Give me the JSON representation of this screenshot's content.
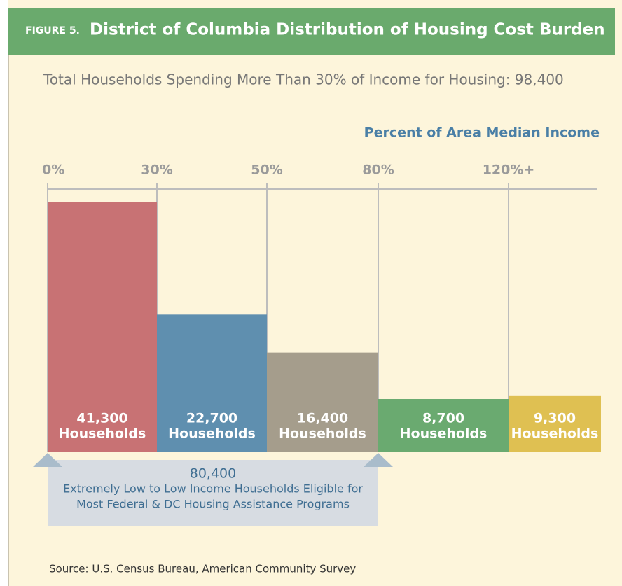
{
  "chart_data": {
    "type": "bar",
    "figure_label": "FIGURE 5.",
    "title": "District of Columbia Distribution of Housing Cost Burden",
    "subtitle": "Total Households Spending More Than 30% of Income for Housing: 98,400",
    "x_label": "Percent of Area Median Income",
    "bin_edges": [
      {
        "value": 0,
        "label": "0%"
      },
      {
        "value": 30,
        "label": "30%"
      },
      {
        "value": 50,
        "label": "50%"
      },
      {
        "value": 80,
        "label": "80%"
      },
      {
        "value": 120,
        "label": "120%+"
      }
    ],
    "values": [
      41300,
      22700,
      16400,
      8700,
      9300
    ],
    "value_labels": [
      "41,300",
      "22,700",
      "16,400",
      "8,700",
      "9,300"
    ],
    "unit_label": "Households",
    "colors": [
      "#c87274",
      "#5f8faf",
      "#a59d8c",
      "#6aaa70",
      "#dfc052"
    ],
    "annotation": {
      "value": 80400,
      "value_label": "80,400",
      "lines": [
        "Extremely Low to Low Income Households Eligible for",
        "Most Federal & DC Housing Assistance Programs"
      ]
    },
    "source": "Source:  U.S. Census Bureau, American Community Survey"
  }
}
